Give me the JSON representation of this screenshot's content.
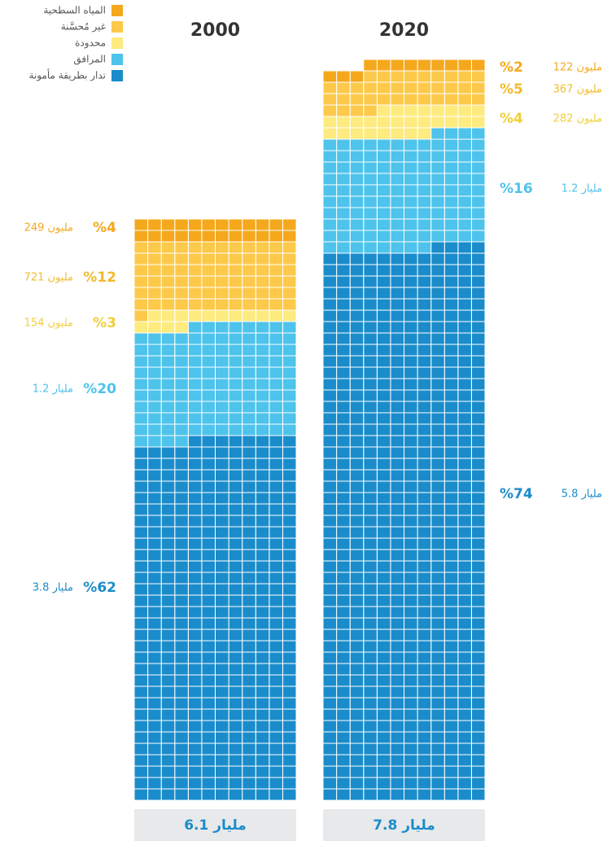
{
  "chart_data": {
    "type": "waffle",
    "categories": [
      "2000",
      "2020"
    ],
    "series": [
      {
        "name": "المياه السطحية",
        "color": "#f5a81c",
        "values": [
          249,
          122
        ],
        "value_labels": [
          "249 مليون",
          "122 مليون"
        ],
        "percents": [
          4,
          2
        ],
        "percent_labels": [
          "%4",
          "%2"
        ]
      },
      {
        "name": "غير مُحسَّنة",
        "color": "#fdc94a",
        "values": [
          721,
          367
        ],
        "value_labels": [
          "721 مليون",
          "367 مليون"
        ],
        "percents": [
          12,
          5
        ],
        "percent_labels": [
          "%12",
          "%5"
        ]
      },
      {
        "name": "محدودة",
        "color": "#fdeb80",
        "values": [
          154,
          282
        ],
        "value_labels": [
          "154 مليون",
          "282 مليون"
        ],
        "percents": [
          3,
          4
        ],
        "percent_labels": [
          "%3",
          "%4"
        ]
      },
      {
        "name": "المرافق",
        "color": "#4ec3ec",
        "values": [
          1200,
          1200
        ],
        "value_labels": [
          "1.2 مليار",
          "1.2 مليار"
        ],
        "percents": [
          20,
          16
        ],
        "percent_labels": [
          "%20",
          "%16"
        ]
      },
      {
        "name": "تدار بطريقة مأمونة",
        "color": "#1b8ccb",
        "values": [
          3800,
          5800
        ],
        "value_labels": [
          "3.8 مليار",
          "5.8 مليار"
        ],
        "percents": [
          62,
          74
        ],
        "percent_labels": [
          "%62",
          "%74"
        ]
      }
    ],
    "totals": [
      6100,
      7800
    ],
    "total_labels": [
      "6.1 مليار",
      "7.8 مليار"
    ]
  }
}
